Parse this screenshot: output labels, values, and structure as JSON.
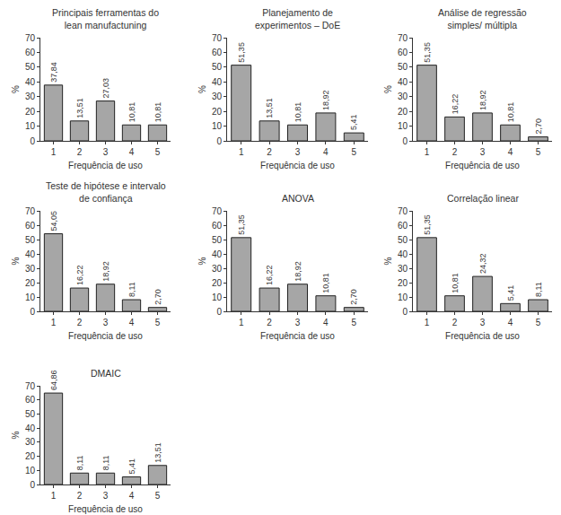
{
  "chart_data": [
    {
      "type": "bar",
      "title": "Principais ferramentas do\nlean manufactuning",
      "categories": [
        "1",
        "2",
        "3",
        "4",
        "5"
      ],
      "values": [
        37.84,
        13.51,
        27.03,
        10.81,
        10.81
      ],
      "value_labels": [
        "37,84",
        "13,51",
        "27,03",
        "10,81",
        "10,81"
      ],
      "xlabel": "Frequência de uso",
      "ylabel": "%",
      "color": "#a6a6a6",
      "ylim": [
        0,
        70
      ],
      "yticks": [
        0,
        10,
        20,
        30,
        40,
        50,
        60,
        70
      ],
      "grid": false,
      "data_labels": true
    },
    {
      "type": "bar",
      "title": "Planejamento de\nexperimentos – DoE",
      "categories": [
        "1",
        "2",
        "3",
        "4",
        "5"
      ],
      "values": [
        51.35,
        13.51,
        10.81,
        18.92,
        5.41
      ],
      "value_labels": [
        "51,35",
        "13,51",
        "10,81",
        "18,92",
        "5,41"
      ],
      "xlabel": "Frequência de uso",
      "ylabel": "%",
      "color": "#a6a6a6",
      "ylim": [
        0,
        70
      ],
      "yticks": [
        0,
        10,
        20,
        30,
        40,
        50,
        60,
        70
      ],
      "grid": false,
      "data_labels": true
    },
    {
      "type": "bar",
      "title": "Análise de regressão\nsimples/ múltipla",
      "categories": [
        "1",
        "2",
        "3",
        "4",
        "5"
      ],
      "values": [
        51.35,
        16.22,
        18.92,
        10.81,
        2.7
      ],
      "value_labels": [
        "51,35",
        "16,22",
        "18,92",
        "10,81",
        "2,70"
      ],
      "xlabel": "Frequência de uso",
      "ylabel": "%",
      "color": "#a6a6a6",
      "ylim": [
        0,
        70
      ],
      "yticks": [
        0,
        10,
        20,
        30,
        40,
        50,
        60,
        70
      ],
      "grid": false,
      "data_labels": true
    },
    {
      "type": "bar",
      "title": "Teste de hipótese e intervalo\nde confiança",
      "categories": [
        "1",
        "2",
        "3",
        "4",
        "5"
      ],
      "values": [
        54.05,
        16.22,
        18.92,
        8.11,
        2.7
      ],
      "value_labels": [
        "54,05",
        "16,22",
        "18,92",
        "8,11",
        "2,70"
      ],
      "xlabel": "Frequência de uso",
      "ylabel": "%",
      "color": "#a6a6a6",
      "ylim": [
        0,
        70
      ],
      "yticks": [
        0,
        10,
        20,
        30,
        40,
        50,
        60,
        70
      ],
      "grid": false,
      "data_labels": true
    },
    {
      "type": "bar",
      "title": "ANOVA",
      "categories": [
        "1",
        "2",
        "3",
        "4",
        "5"
      ],
      "values": [
        51.35,
        16.22,
        18.92,
        10.81,
        2.7
      ],
      "value_labels": [
        "51,35",
        "16,22",
        "18,92",
        "10,81",
        "2,70"
      ],
      "xlabel": "Frequência de uso",
      "ylabel": "%",
      "color": "#a6a6a6",
      "ylim": [
        0,
        70
      ],
      "yticks": [
        0,
        10,
        20,
        30,
        40,
        50,
        60,
        70
      ],
      "grid": false,
      "data_labels": true
    },
    {
      "type": "bar",
      "title": "Correlação linear",
      "categories": [
        "1",
        "2",
        "3",
        "4",
        "5"
      ],
      "values": [
        51.35,
        10.81,
        24.32,
        5.41,
        8.11
      ],
      "value_labels": [
        "51,35",
        "10,81",
        "24,32",
        "5,41",
        "8,11"
      ],
      "xlabel": "Frequência de uso",
      "ylabel": "%",
      "color": "#a6a6a6",
      "ylim": [
        0,
        70
      ],
      "yticks": [
        0,
        10,
        20,
        30,
        40,
        50,
        60,
        70
      ],
      "grid": false,
      "data_labels": true
    },
    {
      "type": "bar",
      "title": "DMAIC",
      "categories": [
        "1",
        "2",
        "3",
        "4",
        "5"
      ],
      "values": [
        64.86,
        8.11,
        8.11,
        5.41,
        13.51
      ],
      "value_labels": [
        "64,86",
        "8,11",
        "8,11",
        "5,41",
        "13,51"
      ],
      "xlabel": "Frequência de uso",
      "ylabel": "%",
      "color": "#a6a6a6",
      "ylim": [
        0,
        70
      ],
      "yticks": [
        0,
        10,
        20,
        30,
        40,
        50,
        60,
        70
      ],
      "grid": false,
      "data_labels": true
    }
  ]
}
